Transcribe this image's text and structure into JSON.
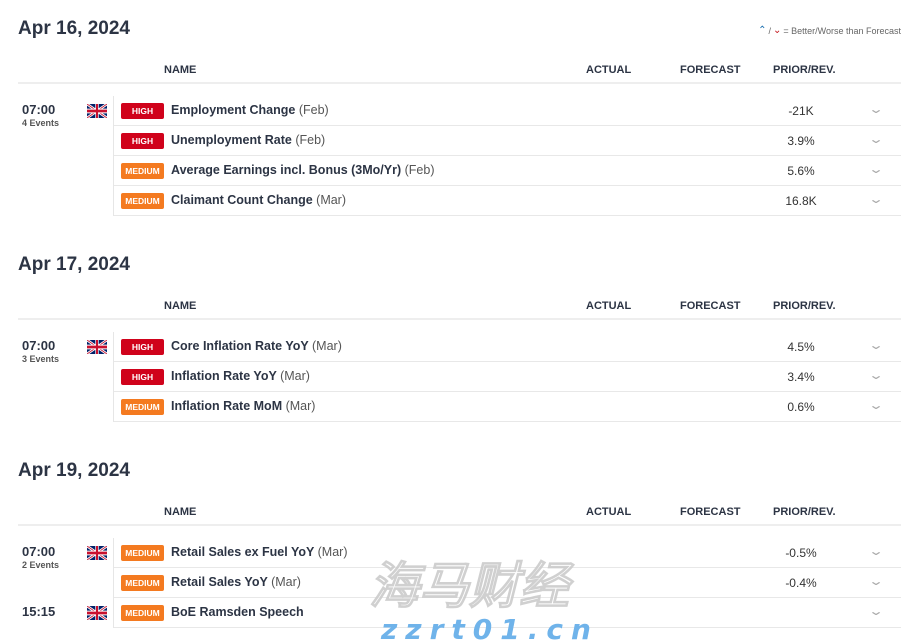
{
  "legend": {
    "text": "= Better/Worse than Forecast",
    "better_icon": "better-arrow-icon",
    "worse_icon": "worse-arrow-icon"
  },
  "columns": {
    "name": "NAME",
    "actual": "ACTUAL",
    "forecast": "FORECAST",
    "prior": "PRIOR/REV."
  },
  "colors": {
    "high": "#d0021b",
    "medium": "#f47a20"
  },
  "sections": [
    {
      "date": "Apr 16, 2024",
      "groups": [
        {
          "time": "07:00",
          "events_count": "4 Events",
          "country": "UK",
          "events": [
            {
              "impact": "HIGH",
              "name": "Employment Change",
              "period": "(Feb)",
              "actual": "",
              "forecast": "",
              "prior": "-21K"
            },
            {
              "impact": "HIGH",
              "name": "Unemployment Rate",
              "period": "(Feb)",
              "actual": "",
              "forecast": "",
              "prior": "3.9%"
            },
            {
              "impact": "MEDIUM",
              "name": "Average Earnings incl. Bonus (3Mo/Yr)",
              "period": "(Feb)",
              "actual": "",
              "forecast": "",
              "prior": "5.6%"
            },
            {
              "impact": "MEDIUM",
              "name": "Claimant Count Change",
              "period": "(Mar)",
              "actual": "",
              "forecast": "",
              "prior": "16.8K"
            }
          ]
        }
      ]
    },
    {
      "date": "Apr 17, 2024",
      "groups": [
        {
          "time": "07:00",
          "events_count": "3 Events",
          "country": "UK",
          "events": [
            {
              "impact": "HIGH",
              "name": "Core Inflation Rate YoY",
              "period": "(Mar)",
              "actual": "",
              "forecast": "",
              "prior": "4.5%"
            },
            {
              "impact": "HIGH",
              "name": "Inflation Rate YoY",
              "period": "(Mar)",
              "actual": "",
              "forecast": "",
              "prior": "3.4%"
            },
            {
              "impact": "MEDIUM",
              "name": "Inflation Rate MoM",
              "period": "(Mar)",
              "actual": "",
              "forecast": "",
              "prior": "0.6%"
            }
          ]
        }
      ]
    },
    {
      "date": "Apr 19, 2024",
      "groups": [
        {
          "time": "07:00",
          "events_count": "2 Events",
          "country": "UK",
          "events": [
            {
              "impact": "MEDIUM",
              "name": "Retail Sales ex Fuel YoY",
              "period": "(Mar)",
              "actual": "",
              "forecast": "",
              "prior": "-0.5%"
            },
            {
              "impact": "MEDIUM",
              "name": "Retail Sales YoY",
              "period": "(Mar)",
              "actual": "",
              "forecast": "",
              "prior": "-0.4%"
            }
          ]
        },
        {
          "time": "15:15",
          "events_count": "",
          "country": "UK",
          "events": [
            {
              "impact": "MEDIUM",
              "name": "BoE Ramsden Speech",
              "period": "",
              "actual": "",
              "forecast": "",
              "prior": ""
            }
          ]
        }
      ]
    }
  ],
  "watermark": {
    "text": "海马财经",
    "url": "zzrt01.cn"
  }
}
